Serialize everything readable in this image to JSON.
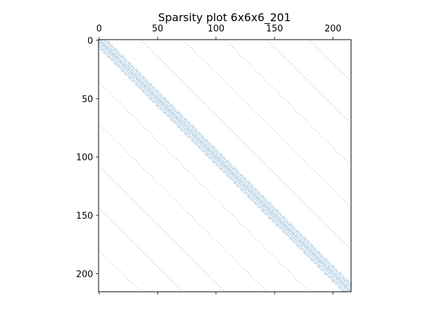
{
  "chart_data": {
    "type": "scatter",
    "title": "Sparsity plot 6x6x6_201",
    "xlabel": "",
    "ylabel": "",
    "matrix_size": 216,
    "xlim": [
      0,
      216
    ],
    "ylim": [
      216,
      0
    ],
    "x_axis_position": "top-and-bottom",
    "x_tick_labels_position": "top",
    "x_ticks": [
      0,
      50,
      100,
      150,
      200
    ],
    "y_ticks": [
      0,
      50,
      100,
      150,
      200
    ],
    "x_tick_labels": [
      "0",
      "50",
      "100",
      "150",
      "200"
    ],
    "y_tick_labels": [
      "0",
      "50",
      "100",
      "150",
      "200"
    ],
    "grid": false,
    "legend": false,
    "marker_color": "#1f77b4",
    "series": [
      {
        "diagonal_offsets": [
          -180,
          -144,
          -108,
          -72,
          -36,
          -6,
          -1,
          0,
          1,
          6,
          36,
          72,
          108,
          144,
          180
        ],
        "dense_band_half_width": 7,
        "description": "structured block-banded pattern of nonzeros"
      }
    ]
  }
}
